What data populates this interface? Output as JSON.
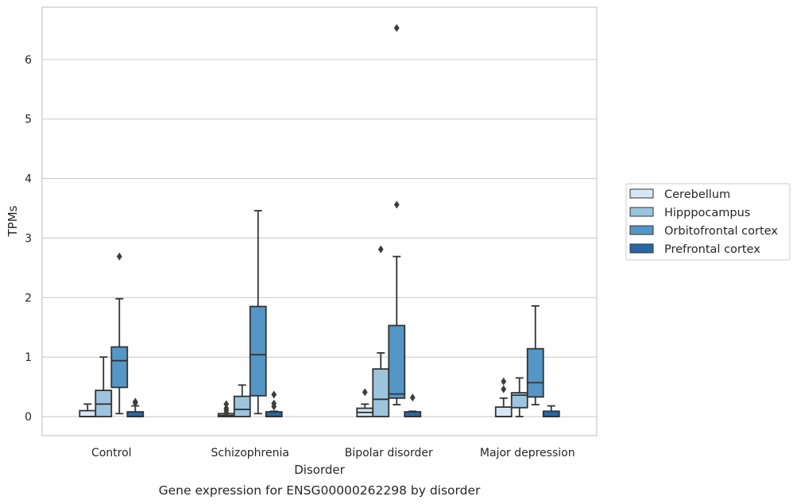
{
  "chart_data": {
    "type": "box",
    "caption": "Gene expression for ENSG00000262298 by disorder",
    "xlabel": "Disorder",
    "ylabel": "TPMs",
    "ylim": [
      -0.32,
      6.88
    ],
    "yticks": [
      0,
      1,
      2,
      3,
      4,
      5,
      6
    ],
    "grid": "horizontal",
    "legend_position": "right",
    "categories": [
      "Control",
      "Schizophrenia",
      "Bipolar disorder",
      "Major depression"
    ],
    "series": [
      {
        "name": "Cerebellum",
        "color": "#d6e6f4",
        "boxes": [
          {
            "q1": 0.0,
            "median": 0.0,
            "q3": 0.1,
            "whislo": 0.0,
            "whishi": 0.21,
            "fliers": []
          },
          {
            "q1": 0.0,
            "median": 0.02,
            "q3": 0.05,
            "whislo": 0.0,
            "whishi": 0.05,
            "fliers": [
              0.06,
              0.1,
              0.14,
              0.21
            ]
          },
          {
            "q1": 0.0,
            "median": 0.07,
            "q3": 0.14,
            "whislo": 0.0,
            "whishi": 0.21,
            "fliers": [
              0.41
            ]
          },
          {
            "q1": 0.0,
            "median": 0.0,
            "q3": 0.16,
            "whislo": 0.0,
            "whishi": 0.31,
            "fliers": [
              0.46,
              0.59
            ]
          }
        ]
      },
      {
        "name": "Hipppocampus",
        "color": "#9cc4dd",
        "boxes": [
          {
            "q1": 0.0,
            "median": 0.21,
            "q3": 0.44,
            "whislo": 0.0,
            "whishi": 1.0,
            "fliers": []
          },
          {
            "q1": 0.0,
            "median": 0.12,
            "q3": 0.34,
            "whislo": 0.0,
            "whishi": 0.53,
            "fliers": []
          },
          {
            "q1": 0.0,
            "median": 0.29,
            "q3": 0.8,
            "whislo": 0.0,
            "whishi": 1.07,
            "fliers": [
              2.81
            ]
          },
          {
            "q1": 0.15,
            "median": 0.36,
            "q3": 0.4,
            "whislo": 0.0,
            "whishi": 0.65,
            "fliers": []
          }
        ]
      },
      {
        "name": "Orbitofrontal cortex",
        "color": "#5497c6",
        "boxes": [
          {
            "q1": 0.49,
            "median": 0.94,
            "q3": 1.17,
            "whislo": 0.05,
            "whishi": 1.98,
            "fliers": [
              2.69
            ]
          },
          {
            "q1": 0.35,
            "median": 1.04,
            "q3": 1.85,
            "whislo": 0.05,
            "whishi": 3.46,
            "fliers": []
          },
          {
            "q1": 0.31,
            "median": 0.38,
            "q3": 1.53,
            "whislo": 0.2,
            "whishi": 2.69,
            "fliers": [
              3.56,
              6.53
            ]
          },
          {
            "q1": 0.33,
            "median": 0.57,
            "q3": 1.14,
            "whislo": 0.2,
            "whishi": 1.86,
            "fliers": []
          }
        ]
      },
      {
        "name": "Prefrontal cortex",
        "color": "#2767a6",
        "boxes": [
          {
            "q1": 0.0,
            "median": 0.0,
            "q3": 0.08,
            "whislo": 0.0,
            "whishi": 0.18,
            "fliers": [
              0.23,
              0.25
            ]
          },
          {
            "q1": 0.0,
            "median": 0.0,
            "q3": 0.08,
            "whislo": 0.0,
            "whishi": 0.09,
            "fliers": [
              0.17,
              0.22,
              0.37
            ]
          },
          {
            "q1": 0.0,
            "median": 0.0,
            "q3": 0.08,
            "whislo": 0.0,
            "whishi": 0.09,
            "fliers": [
              0.32
            ]
          },
          {
            "q1": 0.0,
            "median": 0.0,
            "q3": 0.09,
            "whislo": 0.0,
            "whishi": 0.18,
            "fliers": []
          }
        ]
      }
    ]
  }
}
